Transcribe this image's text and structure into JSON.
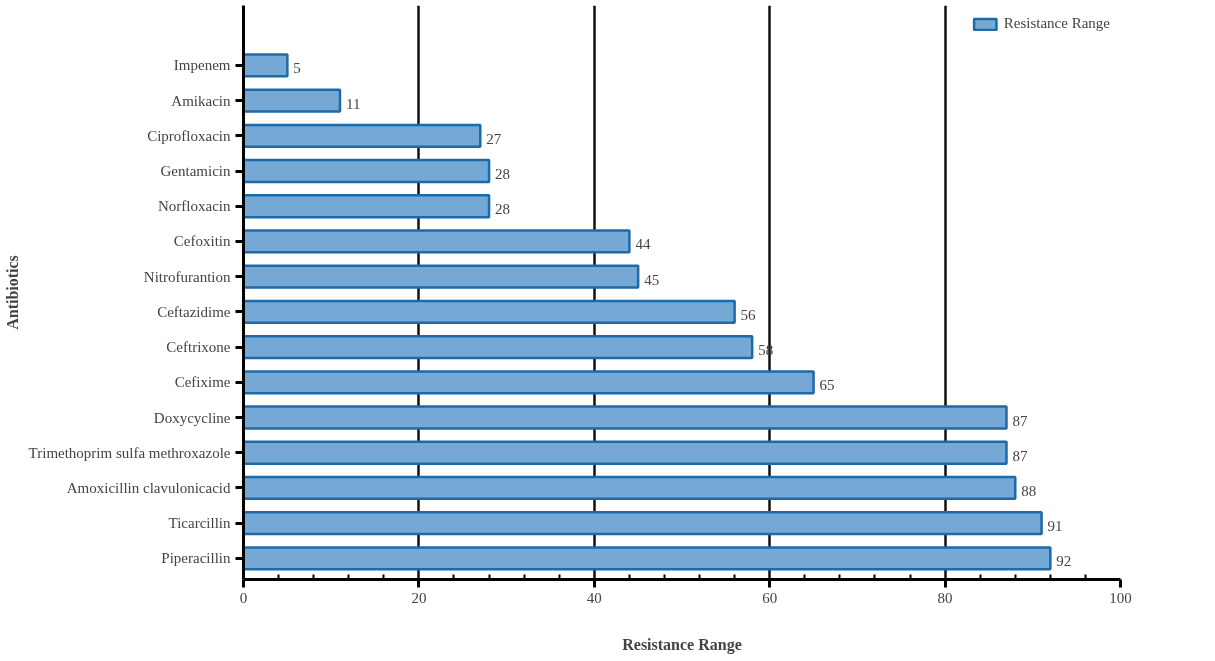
{
  "chart_data": {
    "type": "bar",
    "orientation": "horizontal",
    "xlabel": "Resistance Range",
    "ylabel": "Antibiotics",
    "categories": [
      "Impenem",
      "Amikacin",
      "Ciprofloxacin",
      "Gentamicin",
      "Norfloxacin",
      "Cefoxitin",
      "Nitrofurantion",
      "Ceftazidime",
      "Ceftrixone",
      "Cefixime",
      "Doxycycline",
      "Trimethoprim sulfa methroxazole",
      "Amoxicillin clavulonicacid",
      "Ticarcillin",
      "Piperacillin"
    ],
    "series": [
      {
        "name": "Resistance Range",
        "color": "#76a8d6",
        "values": [
          5,
          11,
          27,
          28,
          28,
          44,
          45,
          56,
          58,
          65,
          87,
          87,
          88,
          91,
          92
        ]
      }
    ],
    "xlim": [
      0,
      100
    ],
    "xticks": [
      0,
      20,
      40,
      60,
      80,
      100
    ],
    "grid": "x",
    "legend": "top right",
    "data_labels": true
  }
}
